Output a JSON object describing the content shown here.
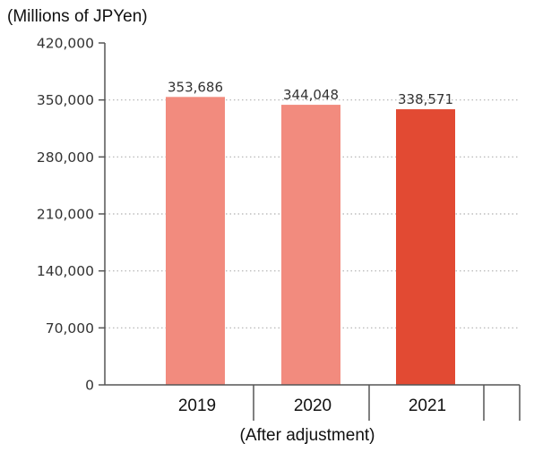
{
  "chart_data": {
    "type": "bar",
    "unit_label": "(Millions of JPYen)",
    "categories": [
      "2019",
      "2020",
      "2021"
    ],
    "values": [
      353686,
      344048,
      338571
    ],
    "value_labels": [
      "353,686",
      "344,048",
      "338,571"
    ],
    "colors": [
      "#f28b7e",
      "#f28b7e",
      "#e24a33"
    ],
    "xlabel": "",
    "ylabel": "",
    "ylim": [
      0,
      420000
    ],
    "yticks": [
      0,
      70000,
      140000,
      210000,
      280000,
      350000,
      420000
    ],
    "ytick_labels": [
      "0",
      "70,000",
      "140,000",
      "210,000",
      "280,000",
      "350,000",
      "420,000"
    ],
    "note": "(After adjustment)",
    "grid": true
  }
}
